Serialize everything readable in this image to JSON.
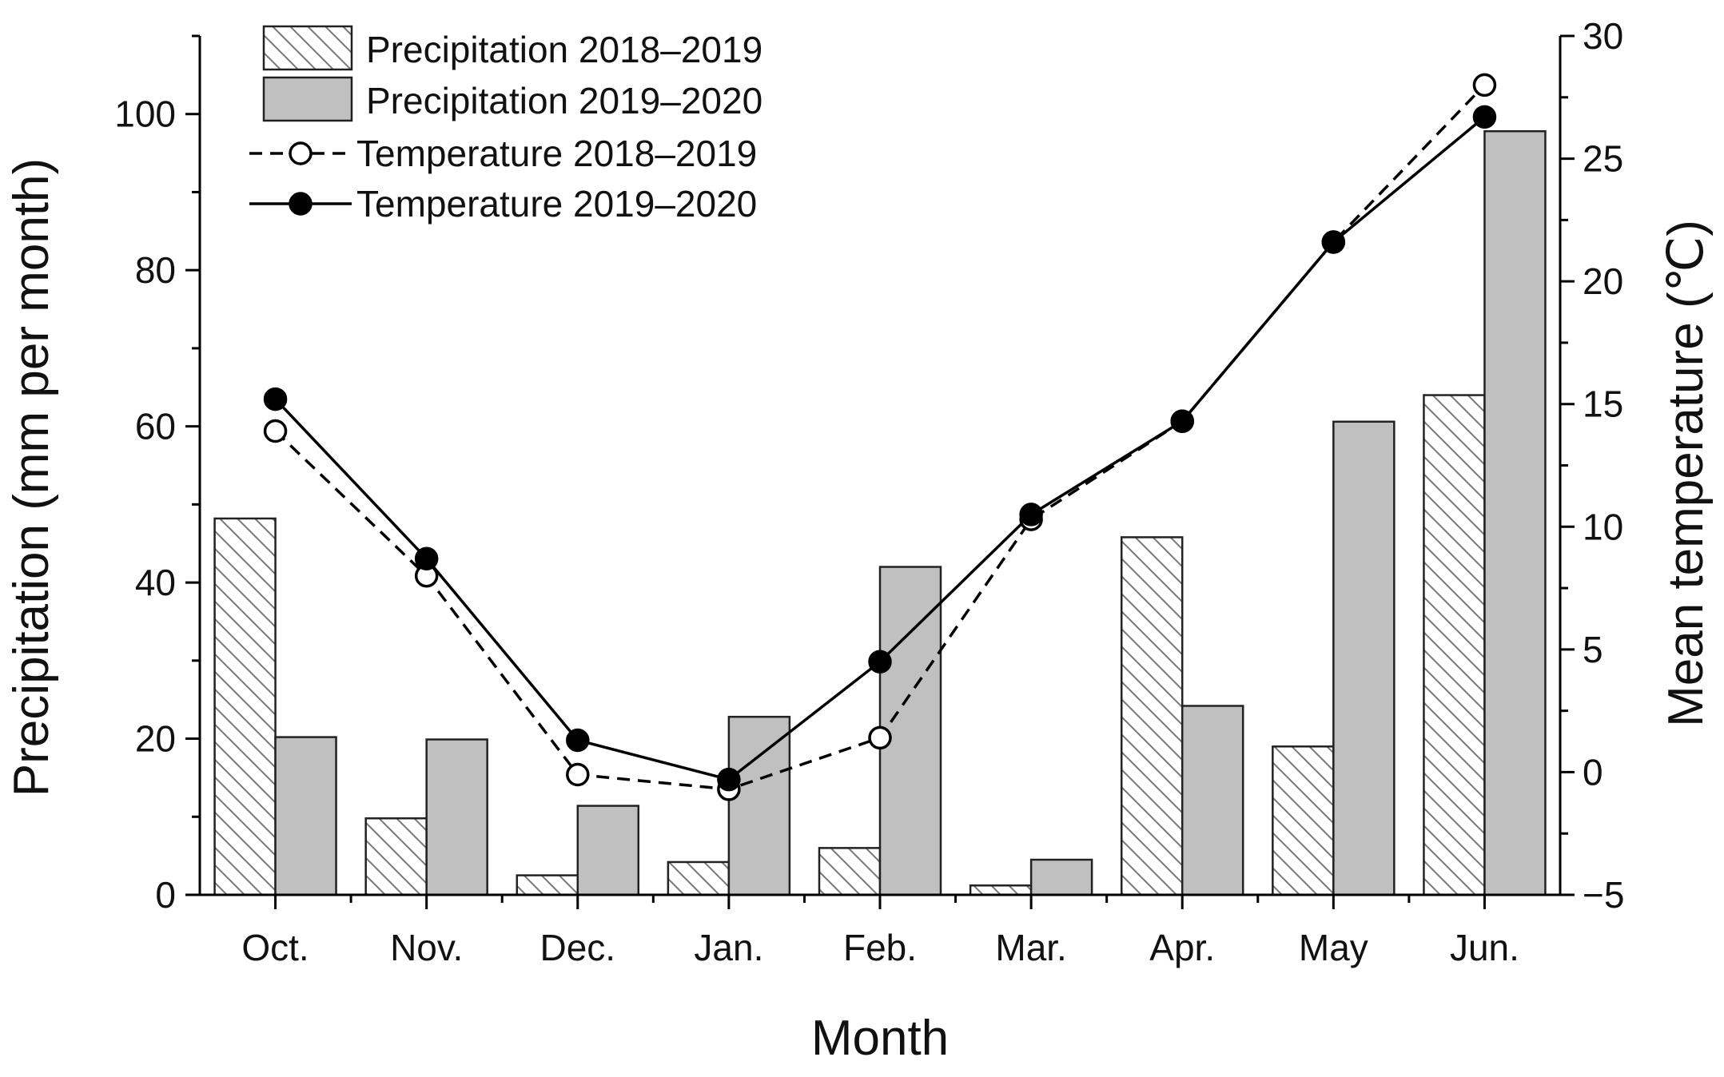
{
  "chart_data": {
    "type": "bar",
    "categories": [
      "Oct.",
      "Nov.",
      "Dec.",
      "Jan.",
      "Feb.",
      "Mar.",
      "Apr.",
      "May",
      "Jun."
    ],
    "xlabel": "Month",
    "ylabel": "Precipitation (mm per month)",
    "y2label": "Mean temperature (℃)",
    "ylim": [
      0,
      110
    ],
    "y2lim": [
      -5,
      30
    ],
    "yticks": [
      0,
      20,
      40,
      60,
      80,
      100
    ],
    "y2ticks": [
      -5,
      0,
      5,
      10,
      15,
      20,
      25,
      30
    ],
    "grid": false,
    "legend_position": "top-left",
    "bar_series": [
      {
        "name": "Precipitation 2018–2019",
        "pattern": "hatched",
        "values": [
          48.2,
          9.8,
          2.5,
          4.2,
          6.0,
          1.2,
          45.8,
          19.0,
          64.0
        ]
      },
      {
        "name": "Precipitation 2019–2020",
        "pattern": "solid-gray",
        "color": "#c0c0c0",
        "values": [
          20.2,
          19.9,
          11.4,
          22.8,
          42.0,
          4.5,
          24.2,
          60.6,
          97.8
        ]
      }
    ],
    "line_series": [
      {
        "name": "Temperature 2018–2019",
        "style": "dashed",
        "marker": "open-circle",
        "axis": "right",
        "values": [
          13.9,
          8.0,
          -0.1,
          -0.7,
          1.4,
          10.3,
          14.3,
          21.6,
          28.0
        ]
      },
      {
        "name": "Temperature 2019–2020",
        "style": "solid",
        "marker": "filled-circle",
        "axis": "right",
        "values": [
          15.2,
          8.7,
          1.3,
          -0.3,
          4.5,
          10.5,
          14.3,
          21.6,
          26.7
        ]
      }
    ]
  }
}
